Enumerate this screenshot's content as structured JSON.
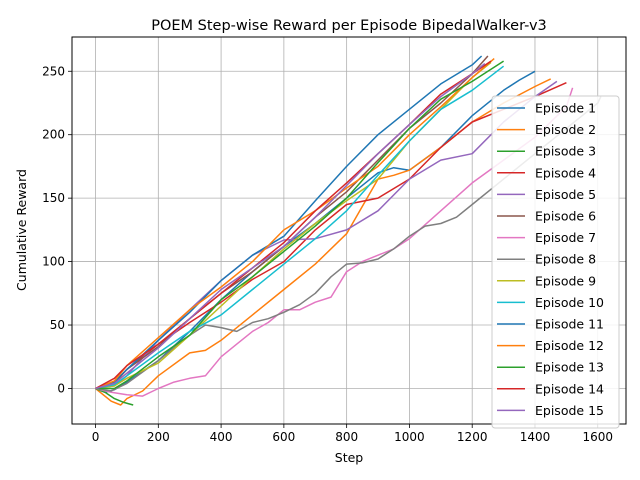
{
  "chart_data": {
    "type": "line",
    "title": "POEM Step-wise Reward per Episode BipedalWalker-v3",
    "xlabel": "Step",
    "ylabel": "Cumulative Reward",
    "xlim": [
      -75,
      1690
    ],
    "ylim": [
      -28,
      277
    ],
    "xticks": [
      0,
      200,
      400,
      600,
      800,
      1000,
      1200,
      1400,
      1600
    ],
    "yticks": [
      0,
      50,
      100,
      150,
      200,
      250
    ],
    "grid": true,
    "legend_position": "right",
    "series": [
      {
        "name": "Episode 1",
        "color": "#1f77b4",
        "x": [
          0,
          30,
          60,
          100,
          200,
          300,
          400,
          500,
          600,
          700,
          800,
          900,
          950,
          1000,
          1100,
          1200,
          1300,
          1350,
          1400
        ],
        "y": [
          0,
          -3,
          -1,
          5,
          22,
          45,
          70,
          92,
          112,
          130,
          150,
          170,
          174,
          172,
          190,
          215,
          235,
          243,
          250
        ]
      },
      {
        "name": "Episode 2",
        "color": "#ff7f0e",
        "x": [
          0,
          50,
          80,
          100,
          150,
          200,
          300,
          350,
          400,
          500,
          600,
          700,
          800,
          900,
          950,
          1000,
          1100,
          1200,
          1300,
          1400,
          1450
        ],
        "y": [
          0,
          -10,
          -13,
          -8,
          -2,
          10,
          28,
          30,
          38,
          58,
          78,
          98,
          122,
          165,
          168,
          172,
          190,
          210,
          225,
          238,
          244
        ]
      },
      {
        "name": "Episode 3",
        "color": "#2ca02c",
        "x": [
          0,
          30,
          60,
          90,
          120
        ],
        "y": [
          0,
          -3,
          -8,
          -11,
          -13
        ]
      },
      {
        "name": "Episode 4",
        "color": "#d62728",
        "x": [
          0,
          60,
          100,
          200,
          300,
          400,
          500,
          600,
          700,
          800,
          900,
          1000,
          1100,
          1200,
          1300,
          1400,
          1500
        ],
        "y": [
          0,
          4,
          15,
          35,
          52,
          68,
          86,
          100,
          125,
          145,
          150,
          165,
          190,
          210,
          220,
          230,
          241
        ]
      },
      {
        "name": "Episode 5",
        "color": "#9467bd",
        "x": [
          0,
          60,
          100,
          200,
          300,
          400,
          500,
          600,
          700,
          800,
          900,
          1000,
          1100,
          1200,
          1300,
          1400,
          1470
        ],
        "y": [
          0,
          2,
          10,
          38,
          62,
          85,
          105,
          117,
          118,
          125,
          140,
          165,
          180,
          185,
          210,
          230,
          242
        ]
      },
      {
        "name": "Episode 6",
        "color": "#8c564b",
        "x": [
          0,
          60,
          100,
          200,
          300,
          400,
          500,
          600,
          700,
          800,
          900,
          1000,
          1100,
          1200,
          1250
        ],
        "y": [
          0,
          5,
          15,
          33,
          55,
          75,
          92,
          112,
          135,
          155,
          180,
          205,
          225,
          248,
          262
        ]
      },
      {
        "name": "Episode 7",
        "color": "#e377c2",
        "x": [
          0,
          50,
          100,
          150,
          200,
          250,
          300,
          350,
          400,
          450,
          500,
          550,
          600,
          650,
          700,
          750,
          800,
          850,
          900,
          950,
          1000,
          1100,
          1200,
          1300,
          1400,
          1500,
          1520
        ],
        "y": [
          0,
          -3,
          -5,
          -6,
          0,
          5,
          8,
          10,
          25,
          35,
          45,
          52,
          62,
          62,
          68,
          72,
          92,
          100,
          105,
          110,
          118,
          140,
          162,
          180,
          198,
          222,
          237
        ]
      },
      {
        "name": "Episode 8",
        "color": "#7f7f7f",
        "x": [
          0,
          50,
          100,
          200,
          300,
          350,
          400,
          450,
          500,
          550,
          600,
          650,
          700,
          750,
          800,
          850,
          900,
          950,
          1000,
          1050,
          1100,
          1150,
          1200,
          1300,
          1400,
          1500,
          1600,
          1610
        ],
        "y": [
          0,
          -2,
          4,
          22,
          42,
          50,
          48,
          45,
          52,
          55,
          60,
          66,
          75,
          88,
          98,
          99,
          102,
          110,
          120,
          128,
          130,
          135,
          145,
          165,
          185,
          205,
          225,
          230
        ]
      },
      {
        "name": "Episode 9",
        "color": "#bcbd22",
        "x": [
          0,
          60,
          100,
          200,
          300,
          400,
          500,
          600,
          700,
          800,
          900,
          1000,
          1100,
          1200,
          1260
        ],
        "y": [
          0,
          2,
          8,
          20,
          42,
          65,
          88,
          110,
          130,
          148,
          165,
          195,
          220,
          245,
          257
        ]
      },
      {
        "name": "Episode 10",
        "color": "#17becf",
        "x": [
          0,
          60,
          100,
          200,
          300,
          400,
          500,
          600,
          700,
          800,
          900,
          1000,
          1100,
          1200,
          1300
        ],
        "y": [
          0,
          3,
          10,
          28,
          45,
          58,
          78,
          98,
          118,
          140,
          168,
          195,
          220,
          235,
          254
        ]
      },
      {
        "name": "Episode 11",
        "color": "#1f77b4",
        "x": [
          0,
          60,
          100,
          200,
          300,
          400,
          450,
          500,
          600,
          700,
          800,
          900,
          1000,
          1100,
          1200,
          1230
        ],
        "y": [
          0,
          5,
          15,
          38,
          60,
          85,
          95,
          105,
          120,
          148,
          175,
          200,
          220,
          240,
          255,
          262
        ]
      },
      {
        "name": "Episode 12",
        "color": "#ff7f0e",
        "x": [
          0,
          60,
          100,
          200,
          300,
          400,
          500,
          600,
          700,
          800,
          900,
          1000,
          1100,
          1200,
          1270
        ],
        "y": [
          0,
          6,
          18,
          40,
          62,
          80,
          100,
          125,
          140,
          158,
          175,
          200,
          222,
          245,
          260
        ]
      },
      {
        "name": "Episode 13",
        "color": "#2ca02c",
        "x": [
          0,
          60,
          100,
          200,
          300,
          400,
          500,
          600,
          700,
          800,
          900,
          1000,
          1100,
          1200,
          1300
        ],
        "y": [
          0,
          0,
          6,
          25,
          42,
          70,
          88,
          108,
          128,
          150,
          178,
          205,
          228,
          242,
          258
        ]
      },
      {
        "name": "Episode 14",
        "color": "#d62728",
        "x": [
          0,
          60,
          100,
          200,
          300,
          400,
          500,
          600,
          700,
          800,
          900,
          1000,
          1100,
          1200,
          1260
        ],
        "y": [
          0,
          8,
          18,
          35,
          55,
          75,
          95,
          115,
          140,
          162,
          185,
          208,
          232,
          248,
          258
        ]
      },
      {
        "name": "Episode 15",
        "color": "#9467bd",
        "x": [
          0,
          60,
          100,
          200,
          300,
          400,
          500,
          600,
          700,
          800,
          900,
          1000,
          1100,
          1200,
          1240
        ],
        "y": [
          0,
          4,
          12,
          32,
          55,
          78,
          95,
          112,
          135,
          160,
          185,
          208,
          230,
          248,
          256
        ]
      }
    ]
  }
}
